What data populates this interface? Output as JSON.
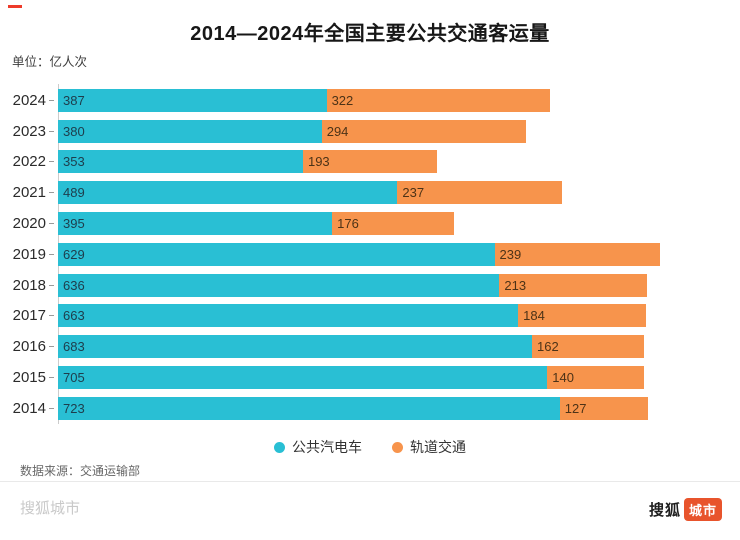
{
  "title": "2014—2024年全国主要公共交通客运量",
  "unit_label": "单位：亿人次",
  "chart_data": {
    "type": "bar",
    "orientation": "horizontal",
    "stacked": true,
    "grid": false,
    "legend_position": "bottom",
    "categories": [
      "2024",
      "2023",
      "2022",
      "2021",
      "2020",
      "2019",
      "2018",
      "2017",
      "2016",
      "2015",
      "2014"
    ],
    "series": [
      {
        "name": "公共汽电车",
        "color": "#29BFD4",
        "values": [
          387,
          380,
          353,
          489,
          395,
          629,
          636,
          663,
          683,
          705,
          723
        ]
      },
      {
        "name": "轨道交通",
        "color": "#F7944C",
        "values": [
          322,
          294,
          193,
          237,
          176,
          239,
          213,
          184,
          162,
          140,
          127
        ]
      }
    ],
    "xlim": [
      0,
      960
    ],
    "value_labels": "inside-left"
  },
  "footer": {
    "source": "数据来源：交通运输部",
    "watermark": "搜狐城市",
    "logo_text_1": "搜狐",
    "logo_text_2": "城市",
    "logo_color": "#E8542C"
  }
}
